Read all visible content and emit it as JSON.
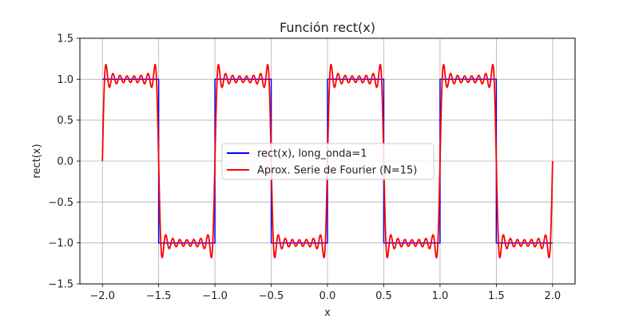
{
  "chart_data": {
    "type": "line",
    "title": "Función rect(x)",
    "xlabel": "x",
    "ylabel": "rect(x)",
    "xlim": [
      -2.2,
      2.2
    ],
    "ylim": [
      -1.5,
      1.5
    ],
    "x_ticks": [
      -2.0,
      -1.5,
      -1.0,
      -0.5,
      0.0,
      0.5,
      1.0,
      1.5,
      2.0
    ],
    "x_tick_labels": [
      "−2.0",
      "−1.5",
      "−1.0",
      "−0.5",
      "0.0",
      "0.5",
      "1.0",
      "1.5",
      "2.0"
    ],
    "y_ticks": [
      -1.5,
      -1.0,
      -0.5,
      0.0,
      0.5,
      1.0,
      1.5
    ],
    "y_tick_labels": [
      "−1.5",
      "−1.0",
      "−0.5",
      "0.0",
      "0.5",
      "1.0",
      "1.5"
    ],
    "grid": true,
    "legend_position": "center",
    "x_range": [
      -2.0,
      2.0
    ],
    "series": [
      {
        "name": "rect(x), long_onda=1",
        "color": "#0000ff",
        "kind": "square_wave",
        "period": 1,
        "amplitude": 1
      },
      {
        "name": "Aprox. Serie de Fourier (N=15)",
        "color": "#ff0000",
        "kind": "fourier_square_wave",
        "period": 1,
        "amplitude": 1,
        "terms": 15
      }
    ]
  }
}
